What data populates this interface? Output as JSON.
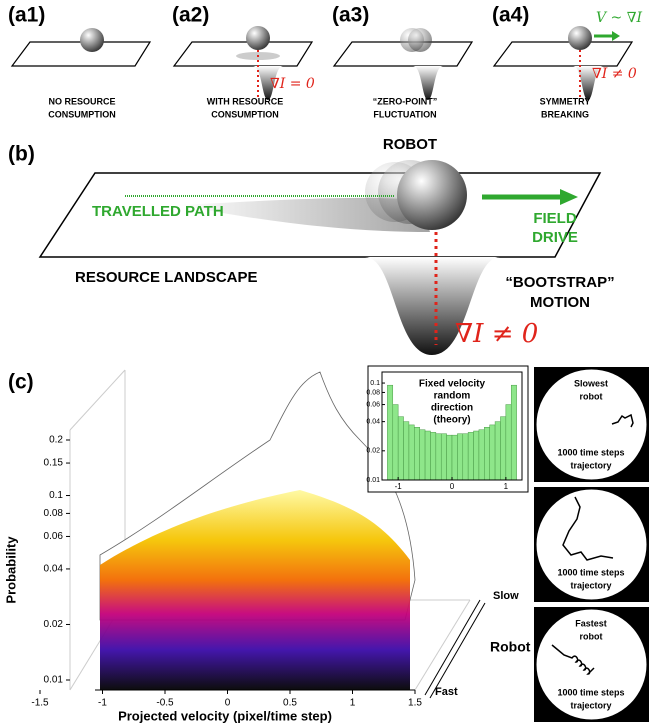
{
  "panel_a": {
    "items": [
      {
        "label": "(a1)",
        "caption": [
          "NO RESOURCE",
          "CONSUMPTION"
        ]
      },
      {
        "label": "(a2)",
        "caption": [
          "WITH RESOURCE",
          "CONSUMPTION"
        ],
        "equation": "∇I = 0"
      },
      {
        "label": "(a3)",
        "caption": [
          "“ZERO-POINT”",
          "FLUCTUATION"
        ]
      },
      {
        "label": "(a4)",
        "caption": [
          "SYMMETRY",
          "BREAKING"
        ],
        "equation": "∇I ≠ 0",
        "velocity": "V ~ ∇I"
      }
    ]
  },
  "panel_b": {
    "label": "(b)",
    "robot": "ROBOT",
    "path": "TRAVELLED PATH",
    "field": [
      "FIELD",
      "DRIVE"
    ],
    "landscape": "RESOURCE LANDSCAPE",
    "bootstrap": [
      "“BOOTSTRAP”",
      "MOTION"
    ],
    "equation": "∇I ≠ 0"
  },
  "panel_c": {
    "label": "(c)",
    "main_plot": {
      "xlabel": "Projected velocity (pixel/time step)",
      "ylabel": "Probability",
      "xlim": [
        -1.5,
        1.5
      ],
      "xticks": [
        -1.5,
        -1,
        -0.5,
        0,
        0.5,
        1,
        1.5
      ],
      "ylim": [
        0.01,
        0.2
      ],
      "yticks": [
        0.01,
        0.02,
        0.04,
        0.06,
        0.08,
        0.1,
        0.15,
        0.2
      ],
      "log_y": true,
      "depth_labels": [
        "Slow",
        "Robot",
        "Fast"
      ]
    },
    "robots": [
      {
        "title": [
          "Slowest",
          "robot"
        ],
        "caption": [
          "1000 time steps",
          "trajectory"
        ]
      },
      {
        "caption": [
          "1000 time steps",
          "trajectory"
        ]
      },
      {
        "title": [
          "Fastest",
          "robot"
        ],
        "caption": [
          "1000 time steps",
          "trajectory"
        ]
      }
    ]
  },
  "chart_data": {
    "type": "histogram",
    "title": [
      "Fixed velocity",
      "random",
      "direction",
      "(theory)"
    ],
    "bins": [
      -1.2,
      -1.1,
      -1.0,
      -0.9,
      -0.8,
      -0.7,
      -0.6,
      -0.5,
      -0.4,
      -0.3,
      -0.2,
      -0.1,
      0,
      0.1,
      0.2,
      0.3,
      0.4,
      0.5,
      0.6,
      0.7,
      0.8,
      0.9,
      1.0,
      1.1,
      1.2
    ],
    "values": [
      0.095,
      0.06,
      0.045,
      0.04,
      0.037,
      0.035,
      0.033,
      0.032,
      0.031,
      0.03,
      0.03,
      0.029,
      0.029,
      0.03,
      0.03,
      0.031,
      0.032,
      0.033,
      0.035,
      0.037,
      0.04,
      0.045,
      0.06,
      0.095
    ],
    "color": "#8ee68a",
    "xlim": [
      -1.3,
      1.3
    ],
    "xticks": [
      -1,
      0,
      1
    ],
    "ylim": [
      0.01,
      0.13
    ],
    "yticks": [
      0.01,
      0.02,
      0.04,
      0.06,
      0.08,
      0.1
    ],
    "log_y": true
  }
}
